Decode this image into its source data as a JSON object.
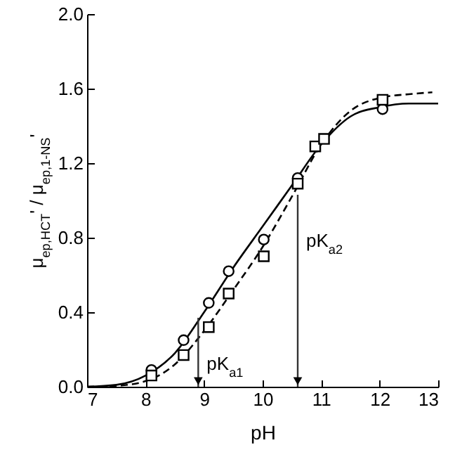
{
  "chart_data": {
    "type": "scatter",
    "xlabel": "pH",
    "ylabel": "μ$_{ep,HCT}$' / μ$_{ep,1-NS}$'",
    "xlim": [
      7,
      13
    ],
    "xticks": [
      7,
      8,
      9,
      10,
      11,
      12,
      13
    ],
    "ylim": [
      0,
      2.0
    ],
    "yticks": [
      {
        "value": 0,
        "label": "0.0"
      },
      0.4,
      0.8,
      1.2,
      1.6,
      {
        "value": 2.0,
        "label": "2.0"
      }
    ],
    "grid": false,
    "series": [
      {
        "type": "line",
        "line_style": "solid",
        "marker": "none",
        "color": "#000000",
        "x": [
          7,
          7.5,
          8,
          8.5,
          9,
          9.5,
          10,
          10.5,
          11,
          11.5,
          12,
          12.5,
          13
        ],
        "values": [
          0.0,
          0.01,
          0.06,
          0.18,
          0.4,
          0.64,
          0.86,
          1.08,
          1.3,
          1.45,
          1.5,
          1.52,
          1.52
        ]
      },
      {
        "type": "line",
        "line_style": "dashed",
        "marker": "none",
        "color": "#000000",
        "x": [
          7,
          7.5,
          8,
          8.5,
          9,
          9.5,
          10,
          10.5,
          11,
          11.5,
          12,
          12.5,
          12.9
        ],
        "values": [
          0.0,
          0.005,
          0.03,
          0.12,
          0.3,
          0.52,
          0.75,
          1.02,
          1.3,
          1.48,
          1.55,
          1.57,
          1.58
        ]
      },
      {
        "marker": "circle",
        "color": "#000000",
        "x": [
          8.1,
          8.65,
          9.08,
          9.42,
          10.02,
          10.6,
          12.05
        ],
        "values": [
          0.09,
          0.25,
          0.45,
          0.62,
          0.79,
          1.12,
          1.49
        ]
      },
      {
        "marker": "square",
        "color": "#000000",
        "x": [
          8.1,
          8.65,
          9.08,
          9.42,
          10.02,
          10.6,
          10.9,
          11.05,
          12.05
        ],
        "values": [
          0.06,
          0.17,
          0.32,
          0.5,
          0.7,
          1.09,
          1.29,
          1.33,
          1.54
        ]
      }
    ],
    "annotations": [
      {
        "text": "pK$_{a1}$",
        "x": 8.9,
        "y": 0.37
      },
      {
        "text": "pK$_{a2}$",
        "x": 10.6,
        "y": 1.03
      }
    ]
  }
}
